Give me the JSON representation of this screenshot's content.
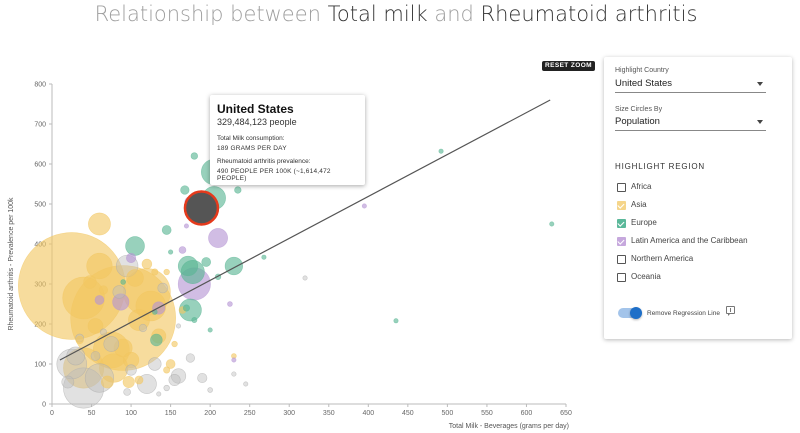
{
  "title": {
    "prefix": "Relationship between ",
    "var1": "Total milk",
    "middle": " and ",
    "var2": "Rheumatoid arthritis"
  },
  "reset_zoom_label": "RESET ZOOM",
  "tooltip": {
    "country": "United States",
    "population": "329,484,123 people",
    "milk_label": "Total Milk consumption:",
    "milk_value": "189 GRAMS PER DAY",
    "ra_label": "Rheumatoid arthritis prevalence:",
    "ra_value": "490 PEOPLE PER 100K (~1,614,472 PEOPLE)"
  },
  "panel": {
    "highlight_country_label": "Highlight Country",
    "highlight_country_value": "United States",
    "size_by_label": "Size Circles By",
    "size_by_value": "Population",
    "region_heading": "HIGHLIGHT REGION",
    "regions": [
      {
        "label": "Africa",
        "checked": false,
        "color": "#555555"
      },
      {
        "label": "Asia",
        "checked": true,
        "color": "#f5d58a"
      },
      {
        "label": "Europe",
        "checked": true,
        "color": "#5bb89a"
      },
      {
        "label": "Latin America and the Caribbean",
        "checked": true,
        "color": "#c6a8dd"
      },
      {
        "label": "Northern America",
        "checked": false,
        "color": "#555555"
      },
      {
        "label": "Oceania",
        "checked": false,
        "color": "#555555"
      }
    ],
    "regression_toggle_label": "Remove Regression Line",
    "regression_toggle_on": true
  },
  "colors": {
    "asia": "#f2c661",
    "europe": "#59b593",
    "latin": "#b594d4",
    "other": "#bdbdbd",
    "highlight_fill": "#555555",
    "highlight_stroke": "#e53a1c",
    "regression": "#555555"
  },
  "chart_data": {
    "type": "scatter",
    "xlabel": "Total Milk - Beverages (grams per day)",
    "ylabel": "Rheumatoid arthritis - Prevalence per 100k",
    "xlim": [
      0,
      650
    ],
    "ylim": [
      0,
      800
    ],
    "xticks": [
      0,
      50,
      100,
      150,
      200,
      250,
      300,
      350,
      400,
      450,
      500,
      550,
      600,
      650
    ],
    "yticks": [
      0,
      100,
      200,
      300,
      400,
      500,
      600,
      700,
      800
    ],
    "grid": false,
    "regression_line": {
      "x": [
        10,
        630
      ],
      "y": [
        110,
        760
      ]
    },
    "highlight": {
      "name": "United States",
      "x": 189,
      "y": 490,
      "region": "Northern America",
      "size": 329484123
    },
    "points": [
      {
        "x": 25,
        "y": 295,
        "region": "asia",
        "size": 1400000000
      },
      {
        "x": 90,
        "y": 215,
        "region": "asia",
        "size": 1350000000
      },
      {
        "x": 120,
        "y": 280,
        "region": "asia",
        "size": 270000000
      },
      {
        "x": 40,
        "y": 265,
        "region": "asia",
        "size": 215000000
      },
      {
        "x": 40,
        "y": 90,
        "region": "asia",
        "size": 200000000
      },
      {
        "x": 75,
        "y": 135,
        "region": "asia",
        "size": 160000000
      },
      {
        "x": 125,
        "y": 245,
        "region": "asia",
        "size": 110000000
      },
      {
        "x": 78,
        "y": 90,
        "region": "asia",
        "size": 100000000
      },
      {
        "x": 60,
        "y": 345,
        "region": "asia",
        "size": 80000000
      },
      {
        "x": 110,
        "y": 210,
        "region": "asia",
        "size": 55000000
      },
      {
        "x": 90,
        "y": 140,
        "region": "asia",
        "size": 40000000
      },
      {
        "x": 105,
        "y": 315,
        "region": "asia",
        "size": 35000000
      },
      {
        "x": 100,
        "y": 110,
        "region": "asia",
        "size": 30000000
      },
      {
        "x": 55,
        "y": 195,
        "region": "asia",
        "size": 28000000
      },
      {
        "x": 135,
        "y": 170,
        "region": "asia",
        "size": 25000000
      },
      {
        "x": 48,
        "y": 305,
        "region": "asia",
        "size": 20000000
      },
      {
        "x": 70,
        "y": 55,
        "region": "asia",
        "size": 18000000
      },
      {
        "x": 97,
        "y": 55,
        "region": "asia",
        "size": 16000000
      },
      {
        "x": 150,
        "y": 100,
        "region": "asia",
        "size": 10000000
      },
      {
        "x": 165,
        "y": 235,
        "region": "asia",
        "size": 6000000
      },
      {
        "x": 145,
        "y": 85,
        "region": "asia",
        "size": 5000000
      },
      {
        "x": 230,
        "y": 120,
        "region": "asia",
        "size": 3000000
      },
      {
        "x": 60,
        "y": 450,
        "region": "asia",
        "size": 60000000
      },
      {
        "x": 145,
        "y": 330,
        "region": "asia",
        "size": 4000000
      },
      {
        "x": 65,
        "y": 285,
        "region": "asia",
        "size": 9000000
      },
      {
        "x": 120,
        "y": 350,
        "region": "asia",
        "size": 12000000
      },
      {
        "x": 35,
        "y": 160,
        "region": "asia",
        "size": 7000000
      },
      {
        "x": 110,
        "y": 60,
        "region": "asia",
        "size": 8000000
      },
      {
        "x": 130,
        "y": 330,
        "region": "asia",
        "size": 5000000
      },
      {
        "x": 155,
        "y": 150,
        "region": "asia",
        "size": 4000000
      },
      {
        "x": 205,
        "y": 580,
        "region": "europe",
        "size": 80000000
      },
      {
        "x": 178,
        "y": 330,
        "region": "europe",
        "size": 67000000
      },
      {
        "x": 205,
        "y": 515,
        "region": "europe",
        "size": 65000000
      },
      {
        "x": 175,
        "y": 235,
        "region": "europe",
        "size": 60000000
      },
      {
        "x": 230,
        "y": 345,
        "region": "europe",
        "size": 38000000
      },
      {
        "x": 105,
        "y": 395,
        "region": "europe",
        "size": 44000000
      },
      {
        "x": 172,
        "y": 345,
        "region": "europe",
        "size": 47000000
      },
      {
        "x": 132,
        "y": 160,
        "region": "europe",
        "size": 17000000
      },
      {
        "x": 145,
        "y": 435,
        "region": "europe",
        "size": 10000000
      },
      {
        "x": 195,
        "y": 355,
        "region": "europe",
        "size": 10000000
      },
      {
        "x": 168,
        "y": 535,
        "region": "europe",
        "size": 9000000
      },
      {
        "x": 180,
        "y": 620,
        "region": "europe",
        "size": 5500000
      },
      {
        "x": 235,
        "y": 535,
        "region": "europe",
        "size": 5400000
      },
      {
        "x": 492,
        "y": 632,
        "region": "europe",
        "size": 2000000
      },
      {
        "x": 632,
        "y": 450,
        "region": "europe",
        "size": 2000000
      },
      {
        "x": 170,
        "y": 240,
        "region": "europe",
        "size": 5000000
      },
      {
        "x": 210,
        "y": 318,
        "region": "europe",
        "size": 4000000
      },
      {
        "x": 180,
        "y": 210,
        "region": "europe",
        "size": 3500000
      },
      {
        "x": 90,
        "y": 305,
        "region": "europe",
        "size": 3000000
      },
      {
        "x": 268,
        "y": 367,
        "region": "europe",
        "size": 1000000
      },
      {
        "x": 435,
        "y": 208,
        "region": "europe",
        "size": 1000000
      },
      {
        "x": 200,
        "y": 185,
        "region": "europe",
        "size": 1500000
      },
      {
        "x": 130,
        "y": 230,
        "region": "europe",
        "size": 3000000
      },
      {
        "x": 150,
        "y": 380,
        "region": "europe",
        "size": 2500000
      },
      {
        "x": 180,
        "y": 300,
        "region": "latin",
        "size": 128000000
      },
      {
        "x": 210,
        "y": 415,
        "region": "latin",
        "size": 45000000
      },
      {
        "x": 87,
        "y": 255,
        "region": "latin",
        "size": 33000000
      },
      {
        "x": 135,
        "y": 240,
        "region": "latin",
        "size": 19000000
      },
      {
        "x": 175,
        "y": 505,
        "region": "latin",
        "size": 15000000
      },
      {
        "x": 100,
        "y": 365,
        "region": "latin",
        "size": 11000000
      },
      {
        "x": 60,
        "y": 260,
        "region": "latin",
        "size": 10000000
      },
      {
        "x": 165,
        "y": 385,
        "region": "latin",
        "size": 6000000
      },
      {
        "x": 180,
        "y": 480,
        "region": "latin",
        "size": 5000000
      },
      {
        "x": 225,
        "y": 250,
        "region": "latin",
        "size": 3000000
      },
      {
        "x": 395,
        "y": 495,
        "region": "latin",
        "size": 1000000
      },
      {
        "x": 230,
        "y": 110,
        "region": "latin",
        "size": 1000000
      },
      {
        "x": 170,
        "y": 445,
        "region": "latin",
        "size": 1000000
      },
      {
        "x": 40,
        "y": 40,
        "region": "other",
        "size": 200000000
      },
      {
        "x": 25,
        "y": 100,
        "region": "other",
        "size": 110000000
      },
      {
        "x": 60,
        "y": 65,
        "region": "other",
        "size": 100000000
      },
      {
        "x": 95,
        "y": 345,
        "region": "other",
        "size": 58000000
      },
      {
        "x": 120,
        "y": 50,
        "region": "other",
        "size": 45000000
      },
      {
        "x": 30,
        "y": 120,
        "region": "other",
        "size": 40000000
      },
      {
        "x": 75,
        "y": 150,
        "region": "other",
        "size": 28000000
      },
      {
        "x": 160,
        "y": 70,
        "region": "other",
        "size": 26000000
      },
      {
        "x": 130,
        "y": 100,
        "region": "other",
        "size": 20000000
      },
      {
        "x": 85,
        "y": 280,
        "region": "other",
        "size": 20000000
      },
      {
        "x": 20,
        "y": 55,
        "region": "other",
        "size": 18000000
      },
      {
        "x": 155,
        "y": 60,
        "region": "other",
        "size": 16000000
      },
      {
        "x": 100,
        "y": 85,
        "region": "other",
        "size": 14000000
      },
      {
        "x": 140,
        "y": 290,
        "region": "other",
        "size": 12000000
      },
      {
        "x": 190,
        "y": 65,
        "region": "other",
        "size": 11000000
      },
      {
        "x": 55,
        "y": 120,
        "region": "other",
        "size": 10000000
      },
      {
        "x": 175,
        "y": 115,
        "region": "other",
        "size": 9000000
      },
      {
        "x": 35,
        "y": 165,
        "region": "other",
        "size": 8000000
      },
      {
        "x": 115,
        "y": 190,
        "region": "other",
        "size": 7000000
      },
      {
        "x": 95,
        "y": 30,
        "region": "other",
        "size": 6000000
      },
      {
        "x": 65,
        "y": 180,
        "region": "other",
        "size": 5000000
      },
      {
        "x": 145,
        "y": 40,
        "region": "other",
        "size": 4000000
      },
      {
        "x": 200,
        "y": 35,
        "region": "other",
        "size": 3000000
      },
      {
        "x": 230,
        "y": 75,
        "region": "other",
        "size": 2500000
      },
      {
        "x": 160,
        "y": 195,
        "region": "other",
        "size": 2000000
      },
      {
        "x": 245,
        "y": 50,
        "region": "other",
        "size": 2000000
      },
      {
        "x": 320,
        "y": 315,
        "region": "other",
        "size": 1000000
      },
      {
        "x": 135,
        "y": 25,
        "region": "other",
        "size": 1500000
      }
    ]
  }
}
